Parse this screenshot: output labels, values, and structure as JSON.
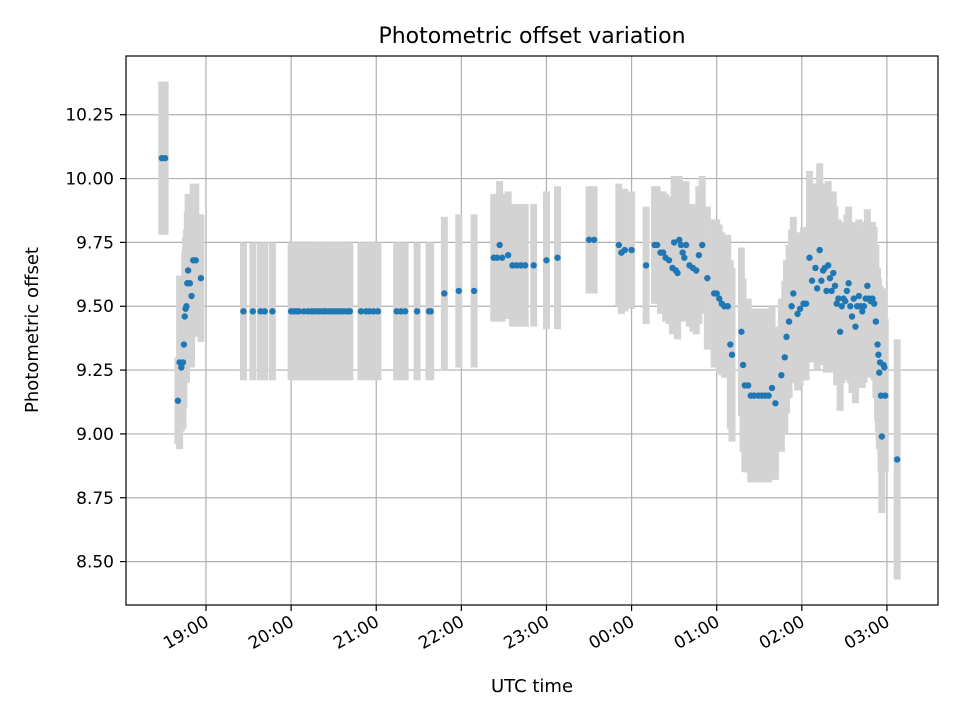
{
  "chart_data": {
    "type": "scatter",
    "title": "Photometric offset variation",
    "xlabel": "UTC time",
    "ylabel": "Photometric offset",
    "grid": true,
    "x_axis": {
      "unit": "hours after 00:00 UTC (negative = previous day)",
      "range": [
        -5.94,
        3.6
      ],
      "ticks": [
        -5,
        -4,
        -3,
        -2,
        -1,
        0,
        1,
        2,
        3
      ],
      "tick_labels": [
        "19:00",
        "20:00",
        "21:00",
        "22:00",
        "23:00",
        "00:00",
        "01:00",
        "02:00",
        "03:00"
      ]
    },
    "y_axis": {
      "range": [
        8.33,
        10.48
      ],
      "ticks": [
        8.5,
        8.75,
        9.0,
        9.25,
        9.5,
        9.75,
        10.0,
        10.25
      ],
      "tick_labels": [
        "8.50",
        "8.75",
        "9.00",
        "9.25",
        "9.50",
        "9.75",
        "10.00",
        "10.25"
      ]
    },
    "colors": {
      "points": "#1f77b4",
      "errorbars": "#d3d3d3",
      "grid": "#b0b0b0"
    },
    "series": [
      {
        "marker": "dot",
        "points": [
          [
            -5.52,
            10.08,
            0.3
          ],
          [
            -5.48,
            10.08,
            0.3
          ],
          [
            -5.33,
            9.13,
            0.17
          ],
          [
            -5.31,
            9.28,
            0.34
          ],
          [
            -5.29,
            9.26,
            0.25
          ],
          [
            -5.27,
            9.28,
            0.26
          ],
          [
            -5.26,
            9.35,
            0.25
          ],
          [
            -5.25,
            9.46,
            0.25
          ],
          [
            -5.24,
            9.49,
            0.28
          ],
          [
            -5.23,
            9.5,
            0.3
          ],
          [
            -5.22,
            9.59,
            0.28
          ],
          [
            -5.21,
            9.64,
            0.3
          ],
          [
            -5.19,
            9.59,
            0.28
          ],
          [
            -5.17,
            9.54,
            0.28
          ],
          [
            -5.15,
            9.68,
            0.3
          ],
          [
            -5.12,
            9.68,
            0.3
          ],
          [
            -5.06,
            9.61,
            0.25
          ],
          [
            -4.56,
            9.48,
            0.27
          ],
          [
            -4.45,
            9.48,
            0.27
          ],
          [
            -4.36,
            9.48,
            0.27
          ],
          [
            -4.31,
            9.48,
            0.27
          ],
          [
            -4.22,
            9.48,
            0.27
          ],
          [
            -4.0,
            9.48,
            0.27
          ],
          [
            -3.97,
            9.48,
            0.27
          ],
          [
            -3.94,
            9.48,
            0.27
          ],
          [
            -3.91,
            9.48,
            0.27
          ],
          [
            -3.85,
            9.48,
            0.27
          ],
          [
            -3.8,
            9.48,
            0.27
          ],
          [
            -3.76,
            9.48,
            0.27
          ],
          [
            -3.73,
            9.48,
            0.27
          ],
          [
            -3.69,
            9.48,
            0.27
          ],
          [
            -3.66,
            9.48,
            0.27
          ],
          [
            -3.62,
            9.48,
            0.27
          ],
          [
            -3.59,
            9.48,
            0.27
          ],
          [
            -3.55,
            9.48,
            0.27
          ],
          [
            -3.52,
            9.48,
            0.27
          ],
          [
            -3.48,
            9.48,
            0.27
          ],
          [
            -3.45,
            9.48,
            0.27
          ],
          [
            -3.41,
            9.48,
            0.27
          ],
          [
            -3.38,
            9.48,
            0.27
          ],
          [
            -3.34,
            9.48,
            0.27
          ],
          [
            -3.31,
            9.48,
            0.27
          ],
          [
            -3.18,
            9.48,
            0.27
          ],
          [
            -3.12,
            9.48,
            0.27
          ],
          [
            -3.08,
            9.48,
            0.27
          ],
          [
            -3.03,
            9.48,
            0.27
          ],
          [
            -2.98,
            9.48,
            0.27
          ],
          [
            -2.76,
            9.48,
            0.27
          ],
          [
            -2.71,
            9.48,
            0.27
          ],
          [
            -2.66,
            9.48,
            0.27
          ],
          [
            -2.52,
            9.48,
            0.27
          ],
          [
            -2.38,
            9.48,
            0.27
          ],
          [
            -2.36,
            9.48,
            0.27
          ],
          [
            -2.2,
            9.55,
            0.3
          ],
          [
            -2.03,
            9.56,
            0.3
          ],
          [
            -1.85,
            9.56,
            0.3
          ],
          [
            -1.62,
            9.69,
            0.25
          ],
          [
            -1.58,
            9.69,
            0.25
          ],
          [
            -1.55,
            9.74,
            0.25
          ],
          [
            -1.52,
            9.69,
            0.25
          ],
          [
            -1.45,
            9.7,
            0.25
          ],
          [
            -1.4,
            9.66,
            0.24
          ],
          [
            -1.35,
            9.66,
            0.24
          ],
          [
            -1.3,
            9.66,
            0.24
          ],
          [
            -1.25,
            9.66,
            0.24
          ],
          [
            -1.15,
            9.66,
            0.24
          ],
          [
            -1.0,
            9.68,
            0.27
          ],
          [
            -0.87,
            9.69,
            0.28
          ],
          [
            -0.5,
            9.76,
            0.21
          ],
          [
            -0.44,
            9.76,
            0.21
          ],
          [
            -0.15,
            9.74,
            0.24
          ],
          [
            -0.12,
            9.71,
            0.24
          ],
          [
            -0.08,
            9.72,
            0.24
          ],
          [
            0.0,
            9.72,
            0.23
          ],
          [
            0.17,
            9.66,
            0.23
          ],
          [
            0.27,
            9.74,
            0.23
          ],
          [
            0.3,
            9.74,
            0.23
          ],
          [
            0.34,
            9.71,
            0.24
          ],
          [
            0.37,
            9.71,
            0.24
          ],
          [
            0.4,
            9.69,
            0.25
          ],
          [
            0.44,
            9.68,
            0.25
          ],
          [
            0.48,
            9.65,
            0.26
          ],
          [
            0.5,
            9.75,
            0.26
          ],
          [
            0.52,
            9.64,
            0.25
          ],
          [
            0.54,
            9.63,
            0.26
          ],
          [
            0.56,
            9.76,
            0.25
          ],
          [
            0.58,
            9.74,
            0.25
          ],
          [
            0.6,
            9.71,
            0.25
          ],
          [
            0.62,
            9.69,
            0.25
          ],
          [
            0.64,
            9.74,
            0.25
          ],
          [
            0.68,
            9.66,
            0.24
          ],
          [
            0.72,
            9.65,
            0.25
          ],
          [
            0.76,
            9.64,
            0.25
          ],
          [
            0.79,
            9.7,
            0.27
          ],
          [
            0.83,
            9.74,
            0.27
          ],
          [
            0.89,
            9.61,
            0.28
          ],
          [
            0.97,
            9.55,
            0.29
          ],
          [
            1.0,
            9.55,
            0.29
          ],
          [
            1.03,
            9.53,
            0.29
          ],
          [
            1.06,
            9.51,
            0.28
          ],
          [
            1.09,
            9.5,
            0.28
          ],
          [
            1.13,
            9.5,
            0.28
          ],
          [
            1.16,
            9.35,
            0.33
          ],
          [
            1.18,
            9.31,
            0.34
          ],
          [
            1.29,
            9.4,
            0.33
          ],
          [
            1.31,
            9.27,
            0.34
          ],
          [
            1.33,
            9.19,
            0.34
          ],
          [
            1.37,
            9.19,
            0.34
          ],
          [
            1.4,
            9.15,
            0.34
          ],
          [
            1.44,
            9.15,
            0.34
          ],
          [
            1.49,
            9.15,
            0.34
          ],
          [
            1.53,
            9.15,
            0.34
          ],
          [
            1.57,
            9.15,
            0.34
          ],
          [
            1.61,
            9.15,
            0.34
          ],
          [
            1.65,
            9.18,
            0.32
          ],
          [
            1.69,
            9.12,
            0.3
          ],
          [
            1.76,
            9.23,
            0.3
          ],
          [
            1.8,
            9.3,
            0.3
          ],
          [
            1.82,
            9.38,
            0.3
          ],
          [
            1.85,
            9.44,
            0.3
          ],
          [
            1.88,
            9.5,
            0.3
          ],
          [
            1.9,
            9.55,
            0.3
          ],
          [
            1.95,
            9.47,
            0.3
          ],
          [
            1.98,
            9.49,
            0.3
          ],
          [
            2.02,
            9.51,
            0.3
          ],
          [
            2.05,
            9.51,
            0.3
          ],
          [
            2.09,
            9.69,
            0.34
          ],
          [
            2.12,
            9.6,
            0.32
          ],
          [
            2.16,
            9.65,
            0.33
          ],
          [
            2.18,
            9.57,
            0.32
          ],
          [
            2.21,
            9.72,
            0.34
          ],
          [
            2.23,
            9.6,
            0.33
          ],
          [
            2.25,
            9.64,
            0.33
          ],
          [
            2.27,
            9.65,
            0.33
          ],
          [
            2.29,
            9.56,
            0.32
          ],
          [
            2.31,
            9.66,
            0.33
          ],
          [
            2.33,
            9.61,
            0.32
          ],
          [
            2.35,
            9.56,
            0.32
          ],
          [
            2.37,
            9.63,
            0.32
          ],
          [
            2.39,
            9.58,
            0.31
          ],
          [
            2.41,
            9.51,
            0.32
          ],
          [
            2.43,
            9.53,
            0.31
          ],
          [
            2.45,
            9.4,
            0.31
          ],
          [
            2.47,
            9.5,
            0.3
          ],
          [
            2.49,
            9.53,
            0.3
          ],
          [
            2.51,
            9.52,
            0.31
          ],
          [
            2.53,
            9.56,
            0.3
          ],
          [
            2.55,
            9.59,
            0.3
          ],
          [
            2.57,
            9.5,
            0.3
          ],
          [
            2.59,
            9.46,
            0.3
          ],
          [
            2.61,
            9.53,
            0.3
          ],
          [
            2.63,
            9.42,
            0.3
          ],
          [
            2.65,
            9.5,
            0.3
          ],
          [
            2.67,
            9.54,
            0.3
          ],
          [
            2.69,
            9.5,
            0.3
          ],
          [
            2.71,
            9.48,
            0.3
          ],
          [
            2.73,
            9.5,
            0.3
          ],
          [
            2.75,
            9.53,
            0.3
          ],
          [
            2.77,
            9.58,
            0.3
          ],
          [
            2.79,
            9.53,
            0.3
          ],
          [
            2.81,
            9.52,
            0.3
          ],
          [
            2.83,
            9.53,
            0.3
          ],
          [
            2.85,
            9.51,
            0.3
          ],
          [
            2.87,
            9.44,
            0.3
          ],
          [
            2.89,
            9.35,
            0.3
          ],
          [
            2.9,
            9.31,
            0.3
          ],
          [
            2.91,
            9.24,
            0.3
          ],
          [
            2.92,
            9.28,
            0.3
          ],
          [
            2.93,
            9.15,
            0.3
          ],
          [
            2.94,
            8.99,
            0.3
          ],
          [
            2.96,
            9.27,
            0.3
          ],
          [
            2.97,
            9.26,
            0.3
          ],
          [
            2.98,
            9.15,
            0.3
          ],
          [
            3.12,
            8.9,
            0.47
          ]
        ]
      }
    ]
  }
}
